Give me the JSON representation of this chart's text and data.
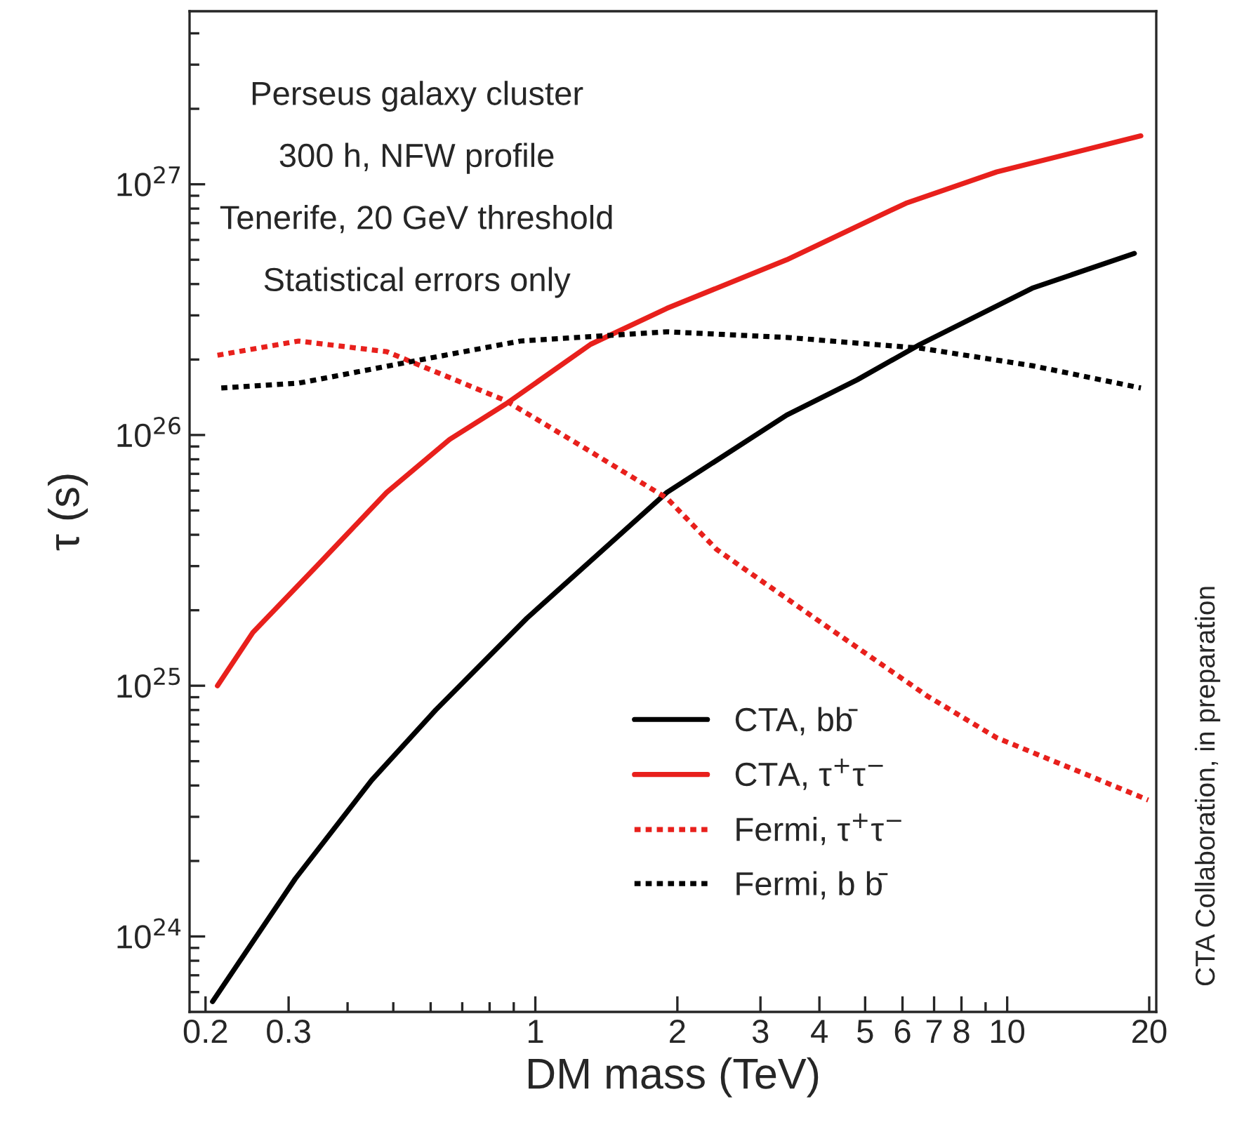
{
  "chart_data": {
    "type": "line",
    "xlabel": "DM mass (TeV)",
    "ylabel": "τ (s)",
    "log": "xy",
    "xlim": [
      0.185,
      20.7
    ],
    "ylim": [
      5e+23,
      4.9e+27
    ],
    "xticks": [
      0.2,
      0.3,
      {
        "value": 0.4,
        "label": null
      },
      {
        "value": 0.5,
        "label": null
      },
      {
        "value": 0.6,
        "label": null
      },
      {
        "value": 0.7,
        "label": null
      },
      {
        "value": 0.8,
        "label": null
      },
      {
        "value": 0.9,
        "label": null
      },
      1,
      2,
      3,
      4,
      5,
      6,
      7,
      8,
      {
        "value": 9,
        "label": null
      },
      10,
      20
    ],
    "yticks": [
      {
        "value": 6e+23,
        "label": null
      },
      {
        "value": 7e+23,
        "label": null
      },
      {
        "value": 8e+23,
        "label": null
      },
      {
        "value": 9e+23,
        "label": null
      },
      {
        "value": 1e+24,
        "label": "10$^{24}$"
      },
      {
        "value": 2e+24,
        "label": null
      },
      {
        "value": 3e+24,
        "label": null
      },
      {
        "value": 4e+24,
        "label": null
      },
      {
        "value": 5e+24,
        "label": null
      },
      {
        "value": 6e+24,
        "label": null
      },
      {
        "value": 7e+24,
        "label": null
      },
      {
        "value": 8e+24,
        "label": null
      },
      {
        "value": 9e+24,
        "label": null
      },
      {
        "value": 1e+25,
        "label": "10$^{25}$"
      },
      {
        "value": 2e+25,
        "label": null
      },
      {
        "value": 3e+25,
        "label": null
      },
      {
        "value": 4e+25,
        "label": null
      },
      {
        "value": 5e+25,
        "label": null
      },
      {
        "value": 6e+25,
        "label": null
      },
      {
        "value": 7e+25,
        "label": null
      },
      {
        "value": 8e+25,
        "label": null
      },
      {
        "value": 9e+25,
        "label": null
      },
      {
        "value": 1e+26,
        "label": "10$^{26}$"
      },
      {
        "value": 2e+26,
        "label": null
      },
      {
        "value": 3e+26,
        "label": null
      },
      {
        "value": 4e+26,
        "label": null
      },
      {
        "value": 5e+26,
        "label": null
      },
      {
        "value": 6e+26,
        "label": null
      },
      {
        "value": 7e+26,
        "label": null
      },
      {
        "value": 8e+26,
        "label": null
      },
      {
        "value": 9e+26,
        "label": null
      },
      {
        "value": 1e+27,
        "label": "10$^{27}$"
      },
      {
        "value": 2e+27,
        "label": null
      },
      {
        "value": 3e+27,
        "label": null
      },
      {
        "value": 4e+27,
        "label": null
      }
    ],
    "grid": false,
    "legend": "bottom",
    "series": [
      {
        "name": "CTA, bb̄",
        "color": "#000000",
        "line_style": "solid",
        "x": [
          0.207,
          0.31,
          0.45,
          0.615,
          0.96,
          1.9,
          3.41,
          4.81,
          6.54,
          11.3,
          18.6
        ],
        "values": [
          5.5e+23,
          1.7e+24,
          4.2e+24,
          8e+24,
          1.86e+25,
          5.9e+25,
          1.2e+26,
          1.66e+26,
          2.3e+26,
          3.85e+26,
          5.3e+26
        ]
      },
      {
        "name": "CTA, τ$^{+}$τ$^{−}$",
        "color": "#e8201c",
        "line_style": "solid",
        "x": [
          0.212,
          0.252,
          0.344,
          0.484,
          0.658,
          0.866,
          1.31,
          1.9,
          3.41,
          6.1,
          9.5,
          19.2
        ],
        "values": [
          1e+25,
          1.63e+25,
          3e+25,
          5.9e+25,
          9.6e+25,
          1.33e+26,
          2.3e+26,
          3.2e+26,
          5e+26,
          8.4e+26,
          1.12e+27,
          1.56e+27
        ]
      },
      {
        "name": "Fermi, τ$^{+}$τ$^{−}$",
        "color": "#e8201c",
        "line_style": "dotted",
        "x": [
          0.212,
          0.315,
          0.484,
          0.866,
          1.22,
          1.9,
          2.42,
          3.91,
          6.77,
          9.5,
          14.4,
          19.9
        ],
        "values": [
          2.08e+26,
          2.37e+26,
          2.15e+26,
          1.37e+26,
          9.3e+25,
          5.6e+25,
          3.5e+25,
          1.86e+25,
          9.1e+24,
          6.2e+24,
          4.5e+24,
          3.5e+24
        ]
      },
      {
        "name": "Fermi, b b̄",
        "color": "#000000",
        "line_style": "dotted",
        "x": [
          0.216,
          0.315,
          0.536,
          0.93,
          1.9,
          3.41,
          6.54,
          11.3,
          19.2
        ],
        "values": [
          1.54e+26,
          1.61e+26,
          1.95e+26,
          2.37e+26,
          2.58e+26,
          2.45e+26,
          2.22e+26,
          1.89e+26,
          1.54e+26
        ]
      }
    ],
    "annotations": [
      "Perseus galaxy cluster",
      "300 h, NFW profile",
      "Tenerife, 20 GeV threshold",
      "Statistical errors only",
      "CTA Collaboration, in preparation"
    ]
  }
}
